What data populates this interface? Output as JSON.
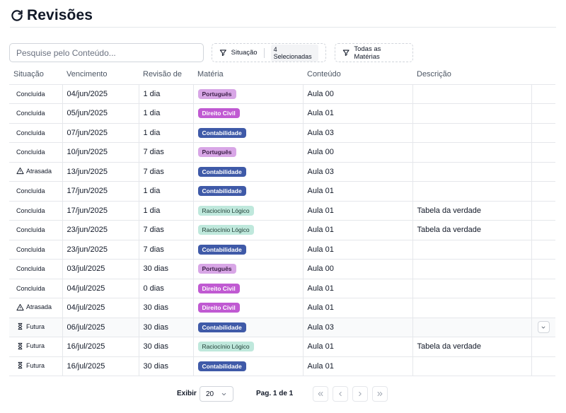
{
  "header": {
    "title": "Revisões",
    "icon": "refresh-icon"
  },
  "toolbar": {
    "search_placeholder": "Pesquise pelo Conteúdo...",
    "search_value": "",
    "situacao_label": "Situação",
    "situacao_chip": "4 Selecionadas",
    "materias_label": "Todas as Matérias"
  },
  "table": {
    "columns": [
      "Situação",
      "Vencimento",
      "Revisão de",
      "Matéria",
      "Conteúdo",
      "Descrição"
    ],
    "rows": [
      {
        "situacao": "Concluída",
        "icon": "",
        "vencimento": "04/jun/2025",
        "revisao": "1 dia",
        "materia": "Português",
        "tone": "port",
        "conteudo": "Aula 00",
        "descricao": ""
      },
      {
        "situacao": "Concluída",
        "icon": "",
        "vencimento": "05/jun/2025",
        "revisao": "1 dia",
        "materia": "Direito Civil",
        "tone": "civil",
        "conteudo": "Aula 01",
        "descricao": ""
      },
      {
        "situacao": "Concluída",
        "icon": "",
        "vencimento": "07/jun/2025",
        "revisao": "1 dia",
        "materia": "Contabilidade",
        "tone": "cont",
        "conteudo": "Aula 03",
        "descricao": ""
      },
      {
        "situacao": "Concluída",
        "icon": "",
        "vencimento": "10/jun/2025",
        "revisao": "7 dias",
        "materia": "Português",
        "tone": "port",
        "conteudo": "Aula 00",
        "descricao": ""
      },
      {
        "situacao": "Atrasada",
        "icon": "warning-icon",
        "vencimento": "13/jun/2025",
        "revisao": "7 dias",
        "materia": "Contabilidade",
        "tone": "cont",
        "conteudo": "Aula 03",
        "descricao": ""
      },
      {
        "situacao": "Concluída",
        "icon": "",
        "vencimento": "17/jun/2025",
        "revisao": "1 dia",
        "materia": "Contabilidade",
        "tone": "cont",
        "conteudo": "Aula 01",
        "descricao": ""
      },
      {
        "situacao": "Concluída",
        "icon": "",
        "vencimento": "17/jun/2025",
        "revisao": "1 dia",
        "materia": "Raciocínio Lógico",
        "tone": "rac",
        "conteudo": "Aula 01",
        "descricao": "Tabela da verdade"
      },
      {
        "situacao": "Concluída",
        "icon": "",
        "vencimento": "23/jun/2025",
        "revisao": "7 dias",
        "materia": "Raciocínio Lógico",
        "tone": "rac",
        "conteudo": "Aula 01",
        "descricao": "Tabela da verdade"
      },
      {
        "situacao": "Concluída",
        "icon": "",
        "vencimento": "23/jun/2025",
        "revisao": "7 dias",
        "materia": "Contabilidade",
        "tone": "cont",
        "conteudo": "Aula 01",
        "descricao": ""
      },
      {
        "situacao": "Concluída",
        "icon": "",
        "vencimento": "03/jul/2025",
        "revisao": "30 dias",
        "materia": "Português",
        "tone": "port",
        "conteudo": "Aula 00",
        "descricao": ""
      },
      {
        "situacao": "Concluída",
        "icon": "",
        "vencimento": "04/jul/2025",
        "revisao": "0 dias",
        "materia": "Direito Civil",
        "tone": "civil",
        "conteudo": "Aula 01",
        "descricao": ""
      },
      {
        "situacao": "Atrasada",
        "icon": "warning-icon",
        "vencimento": "04/jul/2025",
        "revisao": "30 dias",
        "materia": "Direito Civil",
        "tone": "civil",
        "conteudo": "Aula 01",
        "descricao": ""
      },
      {
        "situacao": "Futura",
        "icon": "hourglass-icon",
        "vencimento": "06/jul/2025",
        "revisao": "30 dias",
        "materia": "Contabilidade",
        "tone": "cont",
        "conteudo": "Aula 03",
        "descricao": "",
        "hover": true
      },
      {
        "situacao": "Futura",
        "icon": "hourglass-icon",
        "vencimento": "16/jul/2025",
        "revisao": "30 dias",
        "materia": "Raciocínio Lógico",
        "tone": "rac",
        "conteudo": "Aula 01",
        "descricao": "Tabela da verdade"
      },
      {
        "situacao": "Futura",
        "icon": "hourglass-icon",
        "vencimento": "16/jul/2025",
        "revisao": "30 dias",
        "materia": "Contabilidade",
        "tone": "cont",
        "conteudo": "Aula 01",
        "descricao": ""
      }
    ]
  },
  "pagination": {
    "show_label": "Exibir",
    "page_size": "20",
    "page_info": "Pag. 1 de 1",
    "first_icon": "double-chevron-left-icon",
    "prev_icon": "chevron-left-icon",
    "next_icon": "chevron-right-icon",
    "last_icon": "double-chevron-right-icon"
  },
  "colors": {
    "port": "#d8a6e6",
    "civil": "#c05ad2",
    "cont": "#3f5aa8",
    "rac": "#bfe8dc"
  }
}
